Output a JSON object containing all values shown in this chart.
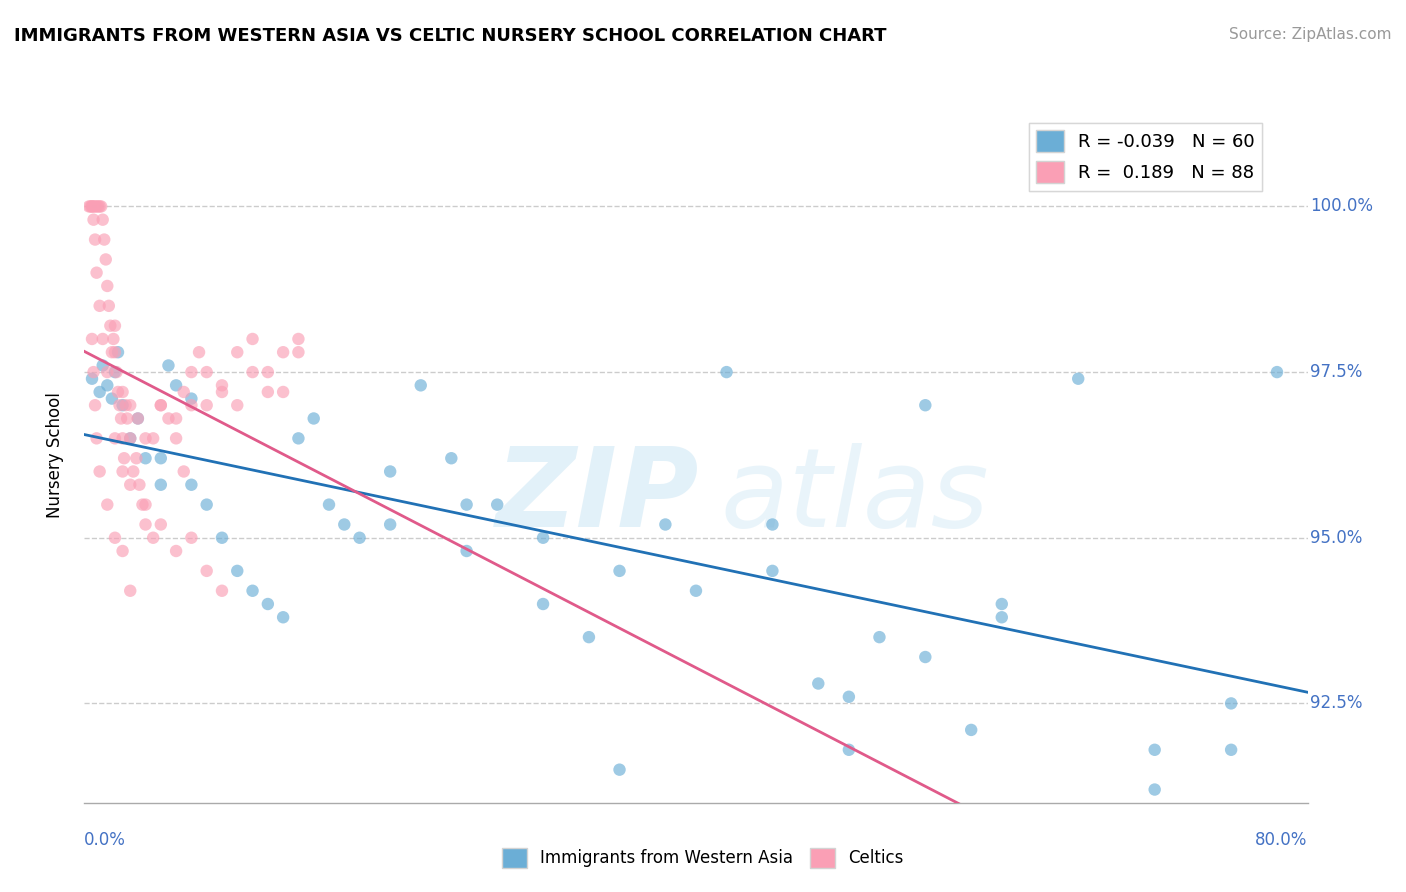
{
  "title": "IMMIGRANTS FROM WESTERN ASIA VS CELTIC NURSERY SCHOOL CORRELATION CHART",
  "source": "Source: ZipAtlas.com",
  "ylabel": "Nursery School",
  "xlim": [
    0.0,
    80.0
  ],
  "ylim": [
    91.0,
    101.5
  ],
  "blue_R": -0.039,
  "blue_N": 60,
  "pink_R": 0.189,
  "pink_N": 88,
  "blue_color": "#6baed6",
  "pink_color": "#fa9fb5",
  "blue_line_color": "#2171b5",
  "pink_line_color": "#e05a8a",
  "ytick_vals": [
    92.5,
    95.0,
    97.5,
    100.0
  ],
  "ytick_labels": [
    "92.5%",
    "95.0%",
    "97.5%",
    "100.0%"
  ],
  "blue_points_x": [
    0.5,
    1.0,
    1.2,
    1.5,
    1.8,
    2.0,
    2.2,
    2.5,
    3.0,
    3.5,
    4.0,
    5.0,
    5.5,
    6.0,
    7.0,
    8.0,
    9.0,
    10.0,
    11.0,
    12.0,
    13.0,
    14.0,
    15.0,
    16.0,
    17.0,
    18.0,
    20.0,
    22.0,
    24.0,
    25.0,
    27.0,
    30.0,
    33.0,
    35.0,
    38.0,
    40.0,
    42.0,
    45.0,
    48.0,
    50.0,
    52.0,
    55.0,
    58.0,
    60.0,
    65.0,
    70.0,
    75.0,
    5.0,
    7.0,
    20.0,
    25.0,
    30.0,
    35.0,
    45.0,
    50.0,
    55.0,
    60.0,
    70.0,
    75.0,
    78.0
  ],
  "blue_points_y": [
    97.4,
    97.2,
    97.6,
    97.3,
    97.1,
    97.5,
    97.8,
    97.0,
    96.5,
    96.8,
    96.2,
    95.8,
    97.6,
    97.3,
    97.1,
    95.5,
    95.0,
    94.5,
    94.2,
    94.0,
    93.8,
    96.5,
    96.8,
    95.5,
    95.2,
    95.0,
    96.0,
    97.3,
    96.2,
    94.8,
    95.5,
    94.0,
    93.5,
    91.5,
    95.2,
    94.2,
    97.5,
    94.5,
    92.8,
    91.8,
    93.5,
    97.0,
    92.1,
    93.8,
    97.4,
    91.2,
    91.8,
    96.2,
    95.8,
    95.2,
    95.5,
    95.0,
    94.5,
    95.2,
    92.6,
    93.2,
    94.0,
    91.8,
    92.5,
    97.5
  ],
  "pink_points_x": [
    0.3,
    0.4,
    0.5,
    0.6,
    0.7,
    0.8,
    0.9,
    1.0,
    1.1,
    1.2,
    1.3,
    1.4,
    1.5,
    1.6,
    1.7,
    1.8,
    1.9,
    2.0,
    2.1,
    2.2,
    2.3,
    2.4,
    2.5,
    2.6,
    2.7,
    2.8,
    3.0,
    3.2,
    3.4,
    3.6,
    3.8,
    4.0,
    4.5,
    5.0,
    5.5,
    6.0,
    6.5,
    7.0,
    7.5,
    8.0,
    9.0,
    10.0,
    11.0,
    12.0,
    13.0,
    14.0,
    0.5,
    0.6,
    0.7,
    0.8,
    1.0,
    1.2,
    1.5,
    2.0,
    2.5,
    3.0,
    3.5,
    4.0,
    5.0,
    6.0,
    7.0,
    8.0,
    9.0,
    10.0,
    11.0,
    12.0,
    13.0,
    14.0,
    2.0,
    2.5,
    3.0,
    4.0,
    5.0,
    6.0,
    7.0,
    8.0,
    9.0,
    0.5,
    0.6,
    0.7,
    0.8,
    1.0,
    1.5,
    2.0,
    2.5,
    3.0,
    4.5,
    6.5
  ],
  "pink_points_y": [
    100.0,
    100.0,
    100.0,
    100.0,
    100.0,
    100.0,
    100.0,
    100.0,
    100.0,
    99.8,
    99.5,
    99.2,
    98.8,
    98.5,
    98.2,
    97.8,
    98.0,
    98.2,
    97.5,
    97.2,
    97.0,
    96.8,
    96.5,
    96.2,
    97.0,
    96.8,
    96.5,
    96.0,
    96.2,
    95.8,
    95.5,
    95.2,
    96.5,
    97.0,
    96.8,
    96.5,
    97.2,
    97.0,
    97.8,
    97.5,
    97.3,
    97.0,
    97.5,
    97.2,
    97.8,
    98.0,
    100.0,
    99.8,
    99.5,
    99.0,
    98.5,
    98.0,
    97.5,
    97.8,
    97.2,
    97.0,
    96.8,
    96.5,
    97.0,
    96.8,
    97.5,
    97.0,
    97.2,
    97.8,
    98.0,
    97.5,
    97.2,
    97.8,
    96.5,
    96.0,
    95.8,
    95.5,
    95.2,
    94.8,
    95.0,
    94.5,
    94.2,
    98.0,
    97.5,
    97.0,
    96.5,
    96.0,
    95.5,
    95.0,
    94.8,
    94.2,
    95.0,
    96.0
  ]
}
